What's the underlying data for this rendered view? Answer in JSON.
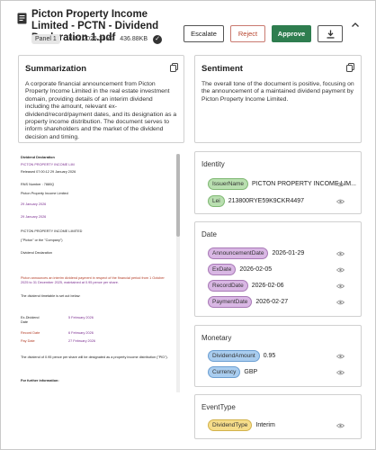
{
  "header": {
    "title": "Picton Property Income Limited - PCTN - Dividend Declaration 1.pdf",
    "panel": "Panel 1",
    "datetime": "10.02.2026 20:43",
    "filesize": "436.88KB",
    "check_glyph": "✓",
    "icons": {
      "document": "document-icon",
      "verified": "check-circle-icon",
      "download": "download-icon",
      "collapse": "chevron-up-icon"
    }
  },
  "actions": {
    "escalate": "Escalate",
    "reject": "Reject",
    "approve": "Approve"
  },
  "summarization": {
    "title": "Summarization",
    "text": "A corporate financial announcement from Picton Property Income Limited in the real estate investment domain, providing details of an interim dividend including the amount, relevant ex-dividend/record/payment dates, and its designation as a property income distribution. The document serves to inform shareholders and the market of the dividend decision and timing."
  },
  "sentiment": {
    "title": "Sentiment",
    "text": "The overall tone of the document is positive, focusing on the announcement of a maintained dividend payment by Picton Property Income Limited."
  },
  "document_preview": {
    "lines": [
      "Dividend Declaration",
      "PICTON PROPERTY INCOME LIM",
      "Released 07:00:12 29 January 2026",
      "RNS Number : 7880Q",
      "Picton Property Income Limited",
      "29 January 2026",
      "29 January 2026",
      "PICTON PROPERTY INCOME LIMITED",
      "(\"Picton\" or the \"Company\")",
      "Dividend Declaration",
      "Picton announces an interim dividend payment in respect of the financial period from 1 October",
      "2025 to 31 December 2025, maintained at 0.95 pence per share.",
      "The dividend timetable is set out below:",
      "Ex-Dividend",
      "Date",
      "5 February 2026",
      "Record Date",
      "6 February 2026",
      "Pay Date",
      "27 February 2026",
      "The dividend of 0.95 pence per share will be designated as a property income distribution (\"PID\").",
      "For further information:"
    ]
  },
  "identity": {
    "title": "Identity",
    "fields": [
      {
        "key": "IssuerName",
        "value": "PICTON PROPERTY INCOME LIM..."
      },
      {
        "key": "Lei",
        "value": "213800RYE59K9CKR4497"
      }
    ]
  },
  "date": {
    "title": "Date",
    "fields": [
      {
        "key": "AnnouncementDate",
        "value": "2026-01-29"
      },
      {
        "key": "ExDate",
        "value": "2026-02-05"
      },
      {
        "key": "RecordDate",
        "value": "2026-02-06"
      },
      {
        "key": "PaymentDate",
        "value": "2026-02-27"
      }
    ]
  },
  "monetary": {
    "title": "Monetary",
    "fields": [
      {
        "key": "DividendAmount",
        "value": "0.95"
      },
      {
        "key": "Currency",
        "value": "GBP"
      }
    ]
  },
  "eventtype": {
    "title": "EventType",
    "fields": [
      {
        "key": "DividendType",
        "value": "Interim"
      }
    ]
  },
  "colors": {
    "approve": "#2e7d4f",
    "reject": "#b8452f",
    "tag_identity": "#b9dfb0",
    "tag_date": "#d9b7e4",
    "tag_monetary": "#a9cdef",
    "tag_eventtype": "#f6dd8a"
  }
}
